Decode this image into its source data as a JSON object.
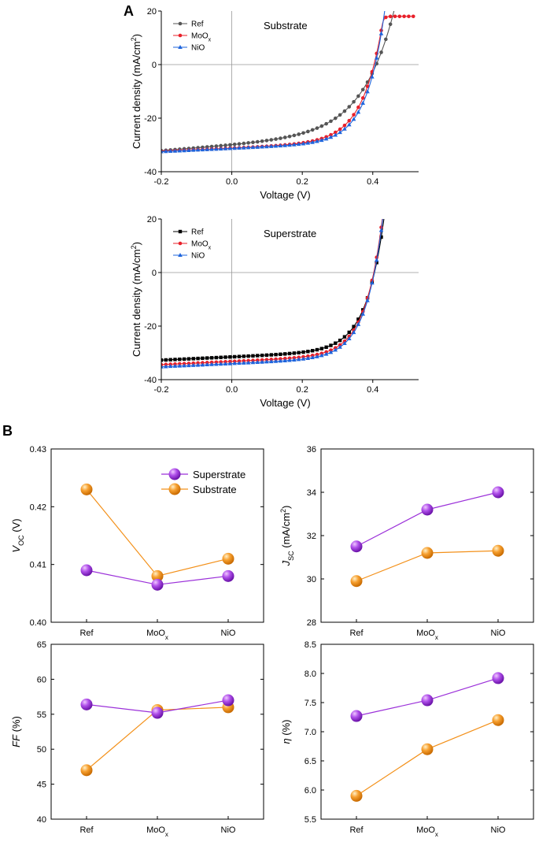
{
  "labels": {
    "panel_a": "A",
    "panel_b": "B"
  },
  "colors": {
    "ref_substrate": "#555555",
    "ref_superstrate": "#000000",
    "moox": "#e8202a",
    "nio": "#1e64dc",
    "superstrate": "#9b30d9",
    "substrate": "#f39019"
  },
  "chart_data": [
    {
      "id": "jv-substrate",
      "type": "line",
      "title": "Substrate",
      "xlabel": "Voltage (V)",
      "ylabel": "Current density (mA/cm",
      "ylabel_sup": "2",
      "ylabel_end": ")",
      "xlim": [
        -0.2,
        0.53
      ],
      "ylim": [
        -40,
        20
      ],
      "xticks": [
        -0.2,
        0.0,
        0.2,
        0.4
      ],
      "xtick_labels": [
        "-0.2",
        "0.0",
        "0.2",
        "0.4"
      ],
      "yticks": [
        -40,
        -20,
        0,
        20
      ],
      "ytick_labels": [
        "-40",
        "-20",
        "0",
        "20"
      ],
      "series": [
        {
          "name": "Ref",
          "sub": "",
          "marker": "circle",
          "color": "#555555",
          "jsc": 29.9,
          "voc": 0.423,
          "n": 3.5,
          "x_end": 0.48
        },
        {
          "name": "MoO",
          "sub": "x",
          "marker": "circle",
          "color": "#e8202a",
          "jsc": 31.2,
          "voc": 0.408,
          "n": 2.2,
          "x_end": 0.52,
          "saturate": 18
        },
        {
          "name": "NiO",
          "sub": "",
          "marker": "triangle",
          "color": "#1e64dc",
          "jsc": 31.3,
          "voc": 0.411,
          "n": 2.0,
          "x_end": 0.45
        }
      ]
    },
    {
      "id": "jv-superstrate",
      "type": "line",
      "title": "Superstrate",
      "xlabel": "Voltage (V)",
      "ylabel": "Current density (mA/cm",
      "ylabel_sup": "2",
      "ylabel_end": ")",
      "xlim": [
        -0.2,
        0.53
      ],
      "ylim": [
        -40,
        20
      ],
      "xticks": [
        -0.2,
        0.0,
        0.2,
        0.4
      ],
      "xtick_labels": [
        "-0.2",
        "0.0",
        "0.2",
        "0.4"
      ],
      "yticks": [
        -40,
        -20,
        0,
        20
      ],
      "ytick_labels": [
        "-40",
        "-20",
        "0",
        "20"
      ],
      "series": [
        {
          "name": "Ref",
          "sub": "",
          "marker": "square",
          "color": "#000000",
          "jsc": 31.5,
          "voc": 0.409,
          "n": 2.0,
          "x_end": 0.45
        },
        {
          "name": "MoO",
          "sub": "x",
          "marker": "circle",
          "color": "#e8202a",
          "jsc": 33.2,
          "voc": 0.4065,
          "n": 1.9,
          "x_end": 0.45
        },
        {
          "name": "NiO",
          "sub": "",
          "marker": "triangle",
          "color": "#1e64dc",
          "jsc": 34.0,
          "voc": 0.408,
          "n": 1.9,
          "x_end": 0.45
        }
      ]
    },
    {
      "id": "voc",
      "type": "line",
      "categories": [
        "Ref",
        "MoO",
        "NiO"
      ],
      "category_subs": [
        "",
        "x",
        ""
      ],
      "ylabel": "V",
      "ylabel_sub": "OC",
      "ylabel_end": " (V)",
      "ylim": [
        0.4,
        0.43
      ],
      "yticks": [
        0.4,
        0.41,
        0.42,
        0.43
      ],
      "ytick_labels": [
        "0.40",
        "0.41",
        "0.42",
        "0.43"
      ],
      "legend": true,
      "series": [
        {
          "name": "Superstrate",
          "values": [
            0.409,
            0.4065,
            0.408
          ]
        },
        {
          "name": "Substrate",
          "values": [
            0.423,
            0.408,
            0.411
          ]
        }
      ]
    },
    {
      "id": "jsc",
      "type": "line",
      "categories": [
        "Ref",
        "MoO",
        "NiO"
      ],
      "category_subs": [
        "",
        "x",
        ""
      ],
      "ylabel": "J",
      "ylabel_sub": "SC",
      "ylabel_end": " (mA/cm",
      "ylabel_sup": "2",
      "ylabel_close": ")",
      "ylim": [
        28,
        36
      ],
      "yticks": [
        28,
        30,
        32,
        34,
        36
      ],
      "ytick_labels": [
        "28",
        "30",
        "32",
        "34",
        "36"
      ],
      "series": [
        {
          "name": "Superstrate",
          "values": [
            31.5,
            33.2,
            34.0
          ]
        },
        {
          "name": "Substrate",
          "values": [
            29.9,
            31.2,
            31.3
          ]
        }
      ]
    },
    {
      "id": "ff",
      "type": "line",
      "categories": [
        "Ref",
        "MoO",
        "NiO"
      ],
      "category_subs": [
        "",
        "x",
        ""
      ],
      "ylabel": "FF",
      "ylabel_end": " (%)",
      "ylim": [
        40,
        65
      ],
      "yticks": [
        40,
        45,
        50,
        55,
        60,
        65
      ],
      "ytick_labels": [
        "40",
        "45",
        "50",
        "55",
        "60",
        "65"
      ],
      "series": [
        {
          "name": "Superstrate",
          "values": [
            56.4,
            55.2,
            57.0
          ]
        },
        {
          "name": "Substrate",
          "values": [
            47.0,
            55.6,
            56.0
          ]
        }
      ]
    },
    {
      "id": "eta",
      "type": "line",
      "categories": [
        "Ref",
        "MoO",
        "NiO"
      ],
      "category_subs": [
        "",
        "x",
        ""
      ],
      "ylabel": "η",
      "ylabel_end": " (%)",
      "ylim": [
        5.5,
        8.5
      ],
      "yticks": [
        5.5,
        6.0,
        6.5,
        7.0,
        7.5,
        8.0,
        8.5
      ],
      "ytick_labels": [
        "5.5",
        "6.0",
        "6.5",
        "7.0",
        "7.5",
        "8.0",
        "8.5"
      ],
      "series": [
        {
          "name": "Superstrate",
          "values": [
            7.27,
            7.54,
            7.92
          ]
        },
        {
          "name": "Substrate",
          "values": [
            5.9,
            6.7,
            7.2
          ]
        }
      ]
    }
  ]
}
